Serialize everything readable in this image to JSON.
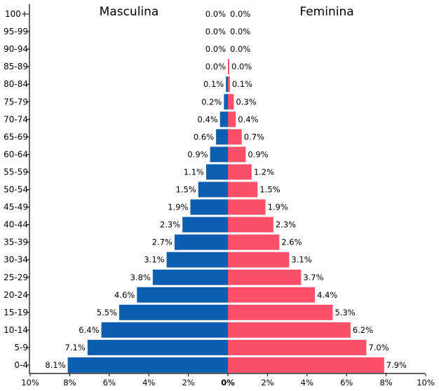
{
  "chart_data": {
    "type": "bar",
    "orientation": "horizontal",
    "layout": "population-pyramid",
    "titles": {
      "left": "Masculina",
      "right": "Feminina"
    },
    "categories": [
      "100+",
      "95-99",
      "90-94",
      "85-89",
      "80-84",
      "75-79",
      "70-74",
      "65-69",
      "60-64",
      "55-59",
      "50-54",
      "45-49",
      "40-44",
      "35-39",
      "30-34",
      "25-29",
      "20-24",
      "15-19",
      "10-14",
      "5-9",
      "0-4"
    ],
    "series": [
      {
        "name": "Masculina",
        "color": "#0b5eb0",
        "values": [
          0.0,
          0.0,
          0.0,
          0.0,
          0.1,
          0.2,
          0.4,
          0.6,
          0.9,
          1.1,
          1.5,
          1.9,
          2.3,
          2.7,
          3.1,
          3.8,
          4.6,
          5.5,
          6.4,
          7.1,
          8.1
        ],
        "labels": [
          "0.0%",
          "0.0%",
          "0.0%",
          "0.0%",
          "0.1%",
          "0.2%",
          "0.4%",
          "0.6%",
          "0.9%",
          "1.1%",
          "1.5%",
          "1.9%",
          "2.3%",
          "2.7%",
          "3.1%",
          "3.8%",
          "4.6%",
          "5.5%",
          "6.4%",
          "7.1%",
          "8.1%"
        ]
      },
      {
        "name": "Feminina",
        "color": "#fc5068",
        "values": [
          0.0,
          0.0,
          0.0,
          0.0,
          0.1,
          0.3,
          0.4,
          0.7,
          0.9,
          1.2,
          1.5,
          1.9,
          2.3,
          2.6,
          3.1,
          3.7,
          4.4,
          5.3,
          6.2,
          7.0,
          7.9
        ],
        "labels": [
          "0.0%",
          "0.0%",
          "0.0%",
          "0.0%",
          "0.1%",
          "0.3%",
          "0.4%",
          "0.7%",
          "0.9%",
          "1.2%",
          "1.5%",
          "1.9%",
          "2.3%",
          "2.6%",
          "3.1%",
          "3.7%",
          "4.4%",
          "5.3%",
          "6.2%",
          "7.0%",
          "7.9%"
        ]
      }
    ],
    "xlim": [
      -10,
      10
    ],
    "x_ticks": [
      -10,
      -8,
      -6,
      -4,
      -2,
      0,
      2,
      4,
      6,
      8,
      10
    ],
    "x_tick_labels": [
      "10%",
      "8%",
      "6%",
      "4%",
      "2%",
      "0%",
      "2%",
      "4%",
      "6%",
      "8%",
      "10%"
    ],
    "grid": false
  }
}
